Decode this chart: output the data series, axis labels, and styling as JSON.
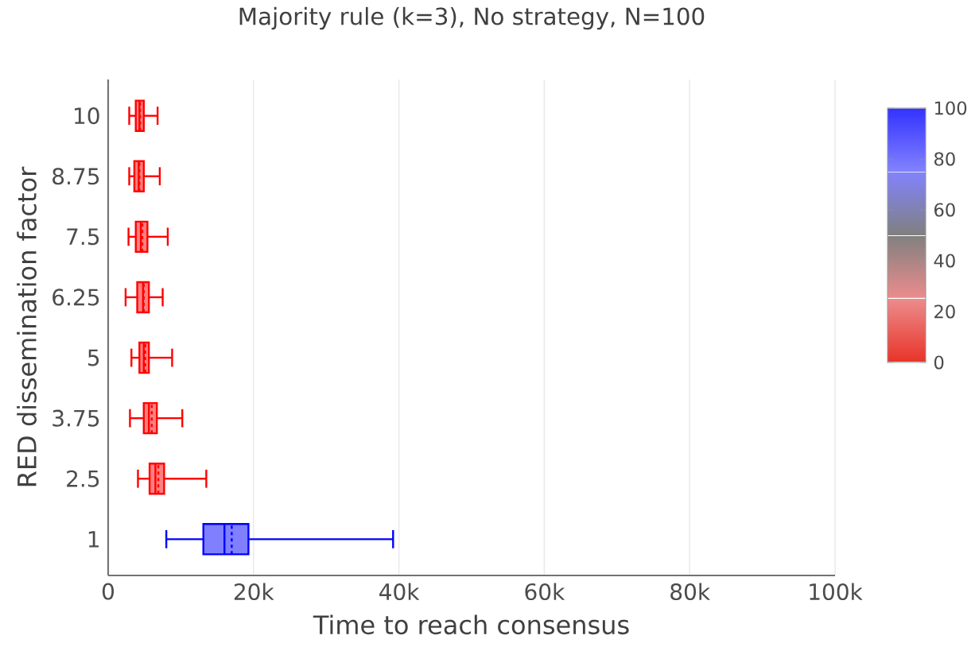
{
  "chart_data": {
    "type": "box",
    "title": "Majority rule (k=3), No strategy, N=100",
    "xlabel": "Time to reach consensus",
    "ylabel": "RED dissemination factor",
    "orientation": "horizontal",
    "categories": [
      "10",
      "8.75",
      "7.5",
      "6.25",
      "5",
      "3.75",
      "2.5",
      "1"
    ],
    "boxes": [
      {
        "low": 2900,
        "q1": 3800,
        "median": 4300,
        "q3": 4900,
        "high": 6800,
        "mean": 4400
      },
      {
        "low": 2900,
        "q1": 3600,
        "median": 4200,
        "q3": 4900,
        "high": 7100,
        "mean": 4300
      },
      {
        "low": 2800,
        "q1": 3800,
        "median": 4500,
        "q3": 5400,
        "high": 8200,
        "mean": 4700
      },
      {
        "low": 2400,
        "q1": 4000,
        "median": 4800,
        "q3": 5600,
        "high": 7500,
        "mean": 4900
      },
      {
        "low": 3200,
        "q1": 4300,
        "median": 4900,
        "q3": 5600,
        "high": 8800,
        "mean": 5100
      },
      {
        "low": 3000,
        "q1": 4900,
        "median": 5600,
        "q3": 6700,
        "high": 10200,
        "mean": 6000
      },
      {
        "low": 4100,
        "q1": 5700,
        "median": 6500,
        "q3": 7700,
        "high": 13500,
        "mean": 6900
      },
      {
        "low": 8000,
        "q1": 13100,
        "median": 16000,
        "q3": 19300,
        "high": 39200,
        "mean": 17000
      }
    ],
    "colors": [
      "#ff0000",
      "#ff0000",
      "#ff0000",
      "#ff0000",
      "#ff0000",
      "#ff0000",
      "#ff0000",
      "#0000ff"
    ],
    "xlim": [
      0,
      100000
    ],
    "xticks": [
      0,
      {
        "value": 20000,
        "label": "20k"
      },
      {
        "value": 40000,
        "label": "40k"
      },
      {
        "value": 60000,
        "label": "60k"
      },
      {
        "value": 80000,
        "label": "80k"
      },
      {
        "value": 100000,
        "label": "100k"
      }
    ],
    "grid": "x",
    "clim": [
      0,
      100
    ],
    "cticks": [
      0,
      20,
      40,
      60,
      80,
      100
    ]
  }
}
